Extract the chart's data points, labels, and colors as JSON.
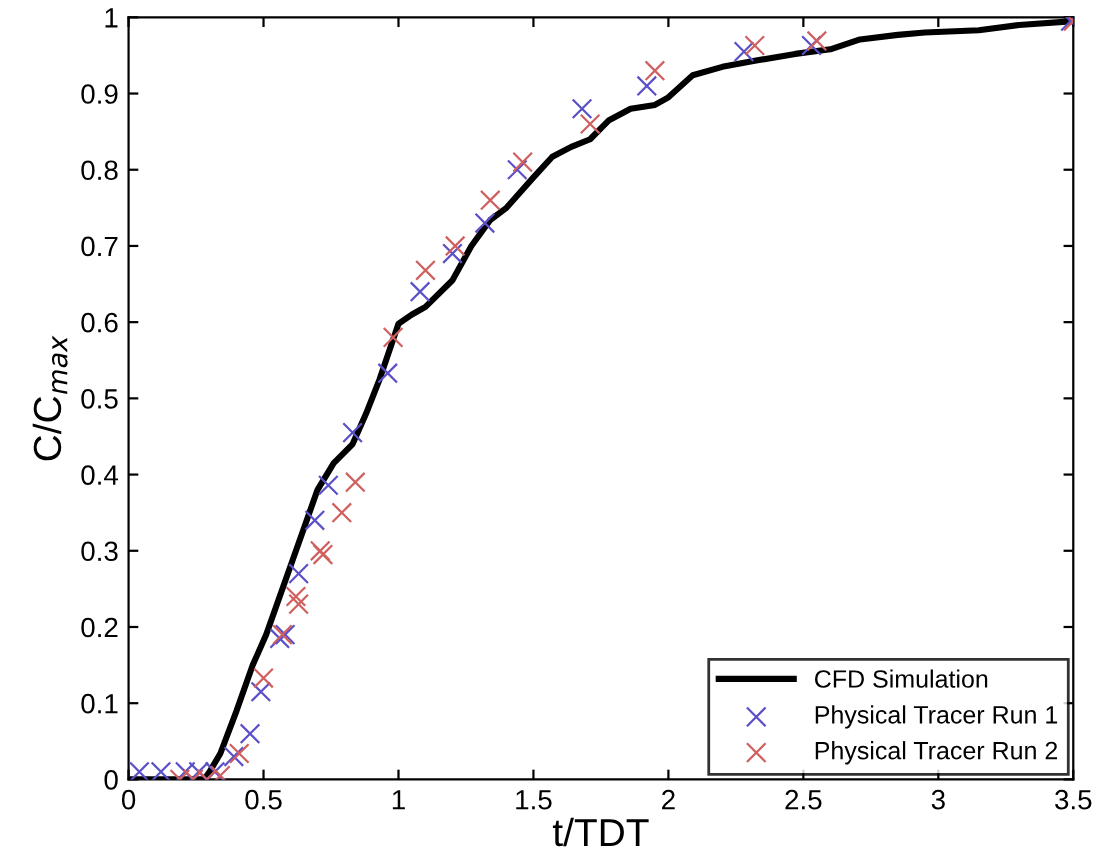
{
  "chart_data": {
    "type": "line",
    "xlabel": "t/TDT",
    "ylabel": "C/C$_{max}$",
    "xlim": [
      0,
      3.5
    ],
    "ylim": [
      0,
      1
    ],
    "xticks": [
      0,
      0.5,
      1,
      1.5,
      2,
      2.5,
      3,
      3.5
    ],
    "yticks": [
      0,
      0.1,
      0.2,
      0.3,
      0.4,
      0.5,
      0.6,
      0.7,
      0.8,
      0.9,
      1
    ],
    "grid": false,
    "legend": "bottom right",
    "series": [
      {
        "name": "CFD Simulation",
        "color": "#000000",
        "marker": "none",
        "x": [
          0,
          0.28,
          0.3,
          0.34,
          0.4,
          0.46,
          0.51,
          0.58,
          0.65,
          0.7,
          0.76,
          0.83,
          0.88,
          0.93,
          1.0,
          1.05,
          1.1,
          1.2,
          1.27,
          1.34,
          1.4,
          1.5,
          1.57,
          1.64,
          1.71,
          1.78,
          1.86,
          1.95,
          2.0,
          2.09,
          2.2,
          2.32,
          2.47,
          2.6,
          2.71,
          2.85,
          2.95,
          3.15,
          3.3,
          3.5
        ],
        "values": [
          0,
          0,
          0.01,
          0.034,
          0.09,
          0.15,
          0.19,
          0.26,
          0.33,
          0.38,
          0.415,
          0.44,
          0.48,
          0.525,
          0.598,
          0.61,
          0.62,
          0.655,
          0.7,
          0.734,
          0.75,
          0.79,
          0.817,
          0.83,
          0.84,
          0.865,
          0.88,
          0.885,
          0.895,
          0.924,
          0.935,
          0.943,
          0.952,
          0.958,
          0.971,
          0.977,
          0.98,
          0.983,
          0.99,
          0.995
        ]
      },
      {
        "name": "Physical Tracer Run 1",
        "type": "scatter",
        "color": "#5a50c8",
        "marker": "cross",
        "x": [
          0.04,
          0.12,
          0.21,
          0.26,
          0.32,
          0.39,
          0.45,
          0.49,
          0.56,
          0.58,
          0.63,
          0.69,
          0.74,
          0.83,
          0.96,
          1.08,
          1.2,
          1.32,
          1.44,
          1.68,
          1.92,
          2.28,
          2.53,
          3.49
        ],
        "values": [
          0.01,
          0.01,
          0.01,
          0.01,
          0.01,
          0.03,
          0.06,
          0.115,
          0.185,
          0.19,
          0.27,
          0.34,
          0.386,
          0.455,
          0.533,
          0.64,
          0.69,
          0.73,
          0.8,
          0.88,
          0.91,
          0.955,
          0.963,
          0.995
        ]
      },
      {
        "name": "Physical Tracer Run 2",
        "type": "scatter",
        "color": "#d06060",
        "marker": "cross",
        "x": [
          0.19,
          0.24,
          0.29,
          0.34,
          0.41,
          0.5,
          0.57,
          0.62,
          0.63,
          0.71,
          0.72,
          0.79,
          0.84,
          0.98,
          1.1,
          1.21,
          1.34,
          1.46,
          1.71,
          1.95,
          2.32,
          2.55,
          3.5
        ],
        "values": [
          0,
          0,
          0,
          0.005,
          0.034,
          0.133,
          0.19,
          0.24,
          0.23,
          0.3,
          0.295,
          0.35,
          0.39,
          0.58,
          0.668,
          0.7,
          0.76,
          0.81,
          0.86,
          0.93,
          0.963,
          0.969,
          0.995
        ]
      }
    ]
  }
}
